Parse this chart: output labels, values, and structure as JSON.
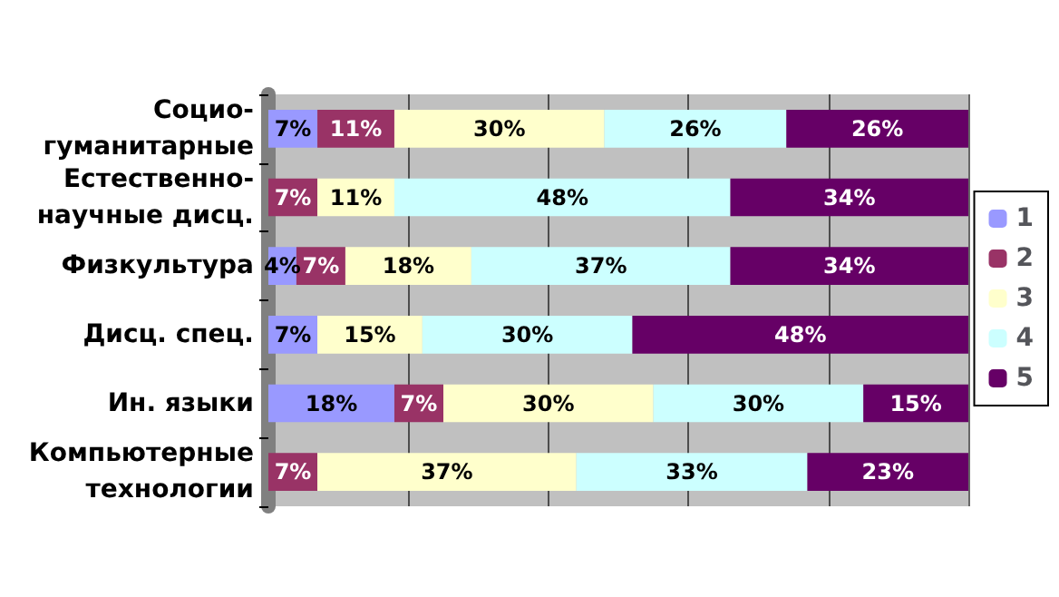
{
  "chart_data": {
    "type": "bar",
    "orientation": "horizontal",
    "stacked": true,
    "categories": [
      "Социо-\nгуманитарные",
      "Естественно-\nнаучные дисц.",
      "Физкультура",
      "Дисц. спец.",
      "Ин. языки",
      "Компьютерные\nтехнологии"
    ],
    "series": [
      {
        "name": "1",
        "color": "#9999ff",
        "values": [
          7,
          null,
          4,
          7,
          18,
          null
        ],
        "value_labels": [
          "7%",
          null,
          "4%",
          "7%",
          "18%",
          null
        ]
      },
      {
        "name": "2",
        "color": "#993366",
        "values": [
          11,
          7,
          7,
          null,
          7,
          7
        ],
        "value_labels": [
          "11%",
          "7%",
          "7%",
          null,
          "7%",
          "7%"
        ]
      },
      {
        "name": "3",
        "color": "#ffffcc",
        "values": [
          30,
          11,
          18,
          15,
          30,
          37
        ],
        "value_labels": [
          "30%",
          "11%",
          "18%",
          "15%",
          "30%",
          "37%"
        ]
      },
      {
        "name": "4",
        "color": "#ccffff",
        "values": [
          26,
          48,
          37,
          30,
          30,
          33
        ],
        "value_labels": [
          "26%",
          "48%",
          "37%",
          "30%",
          "30%",
          "33%"
        ]
      },
      {
        "name": "5",
        "color": "#660066",
        "values": [
          26,
          34,
          34,
          48,
          15,
          23
        ],
        "value_labels": [
          "26%",
          "34%",
          "34%",
          "48%",
          "15%",
          "23%"
        ]
      }
    ],
    "xlim": [
      0,
      100
    ],
    "xticks": [
      {
        "value": 0,
        "label": null
      },
      {
        "value": 20,
        "label": null
      },
      {
        "value": 40,
        "label": null
      },
      {
        "value": 60,
        "label": null
      },
      {
        "value": 80,
        "label": null
      },
      {
        "value": 100,
        "label": null
      }
    ],
    "tick_labels": "y",
    "grid": "x",
    "legend": "right"
  }
}
